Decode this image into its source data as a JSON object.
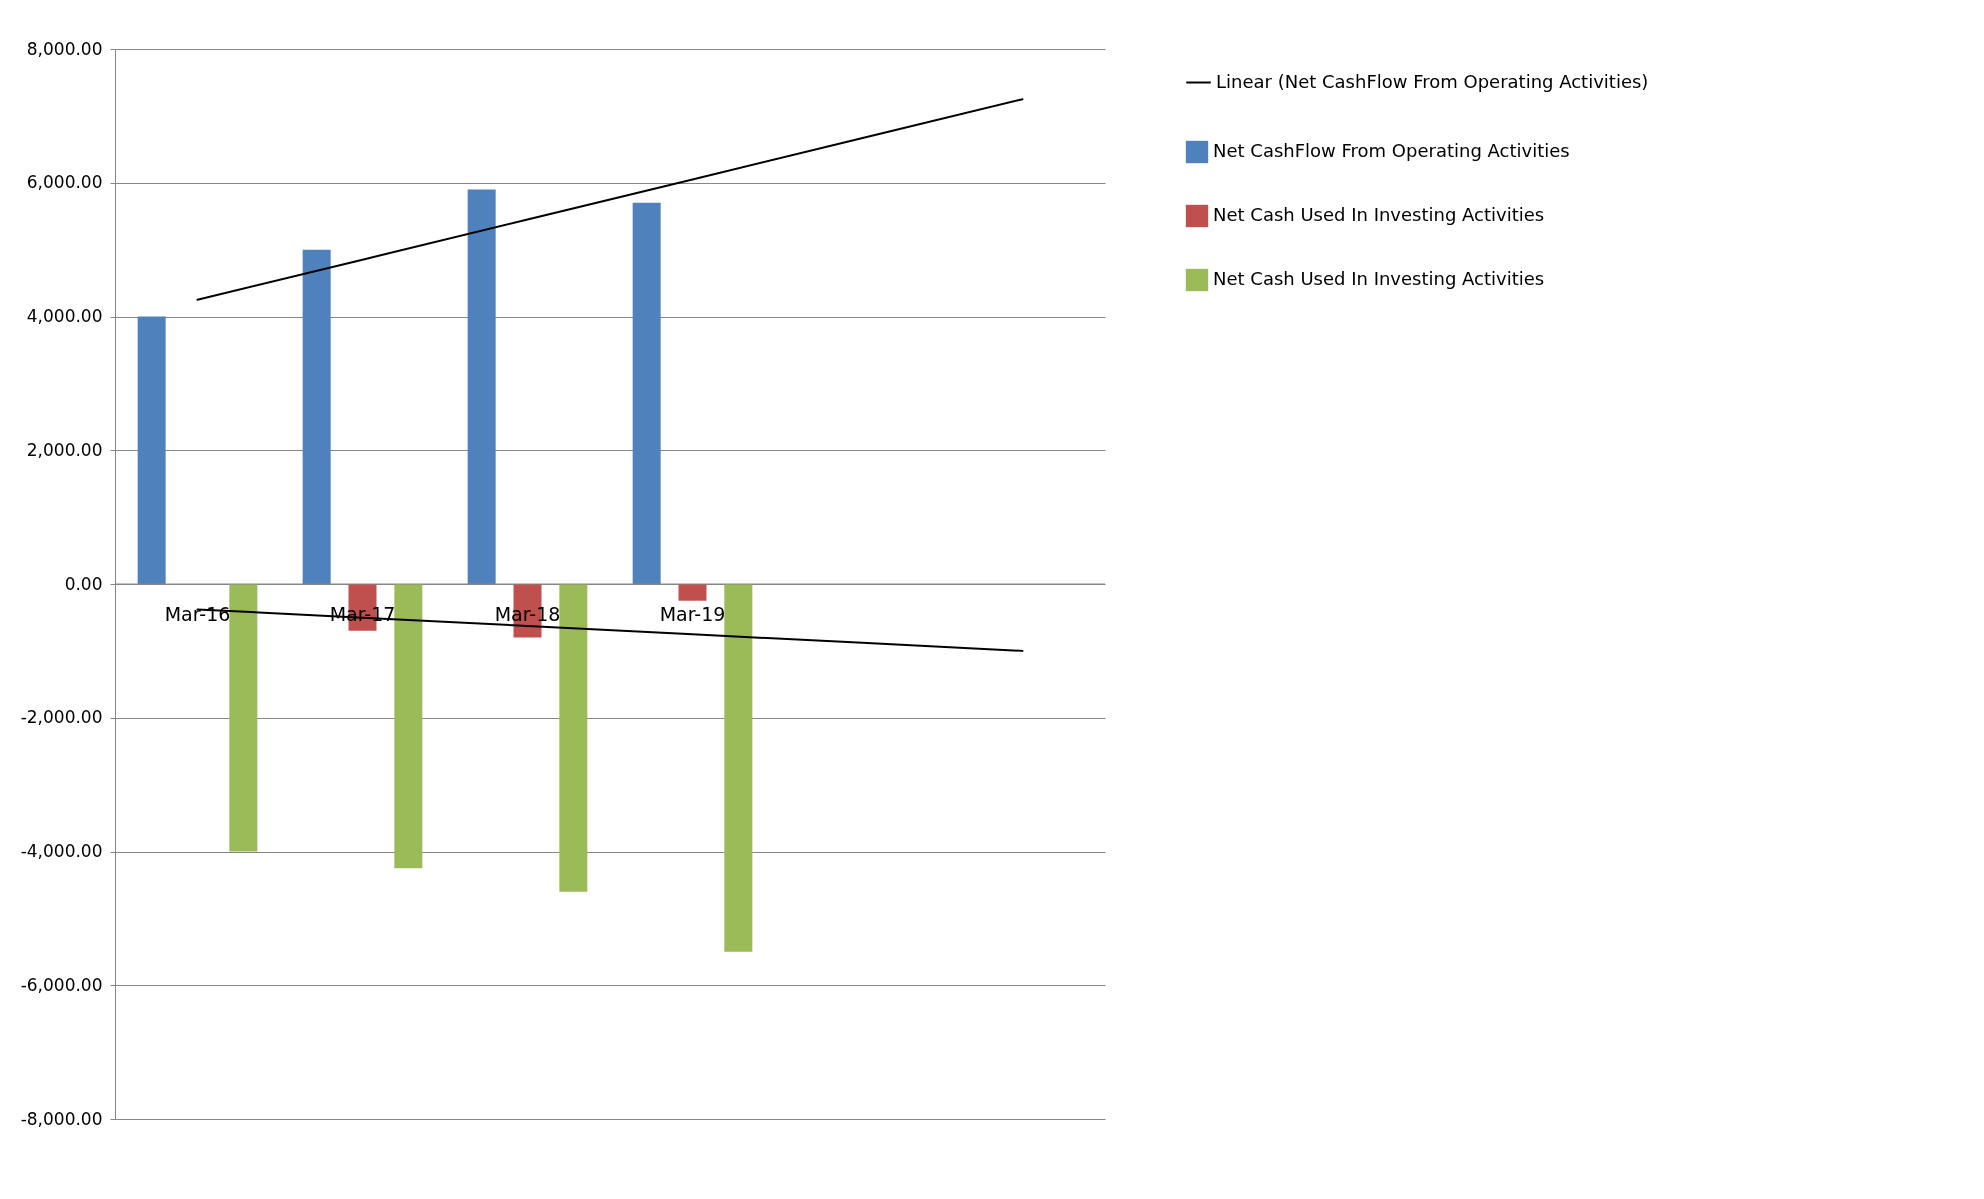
{
  "chart_data": {
    "type": "bar",
    "categories": [
      "Mar-16",
      "Mar-17",
      "Mar-18",
      "Mar-19",
      null,
      null
    ],
    "series": [
      {
        "name": "Net CashFlow From Operating Activities",
        "color": "#4f81bd",
        "values": [
          4000,
          5000,
          5900,
          5700,
          null,
          null
        ]
      },
      {
        "name": "Net Cash Used In Investing Activities",
        "color": "#c0504d",
        "values": [
          0,
          -700,
          -800,
          -250,
          null,
          null
        ]
      },
      {
        "name": "Net Cash Used In Investing Activities",
        "color": "#9bbb59",
        "values": [
          -4000,
          -4250,
          -4600,
          -5500,
          null,
          null
        ]
      },
      {
        "type": "line",
        "name": "Linear (Net CashFlow From Operating Activities)",
        "color": "#000000",
        "values": [
          4250,
          4850,
          5450,
          6050,
          6650,
          7250
        ]
      },
      {
        "type": "line",
        "color": "#000000",
        "values": [
          -380,
          -504,
          -628,
          -752,
          -876,
          -1000
        ]
      }
    ],
    "ylim": [
      -8000,
      8000
    ],
    "yticks": [
      {
        "value": -8000,
        "label": "-8,000.00"
      },
      {
        "value": -6000,
        "label": "-6,000.00"
      },
      {
        "value": -4000,
        "label": "-4,000.00"
      },
      {
        "value": -2000,
        "label": "-2,000.00"
      },
      {
        "value": 0,
        "label": "0.00"
      },
      {
        "value": 2000,
        "label": "2,000.00"
      },
      {
        "value": 4000,
        "label": "4,000.00"
      },
      {
        "value": 6000,
        "label": "6,000.00"
      },
      {
        "value": 8000,
        "label": "8,000.00"
      }
    ],
    "grid": "y",
    "legend": "right"
  }
}
